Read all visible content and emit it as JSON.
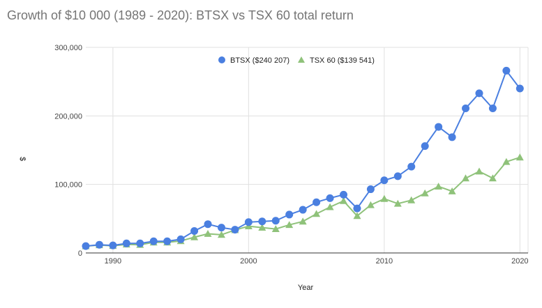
{
  "chart_data": {
    "type": "line",
    "title": "Growth of $10 000 (1989 - 2020): BTSX vs TSX 60 total return",
    "xlabel": "Year",
    "ylabel": "$",
    "xlim": [
      1988,
      2020.6
    ],
    "ylim": [
      0,
      300000
    ],
    "x_ticks": [
      1990,
      2000,
      2010,
      2020
    ],
    "x_tick_labels": [
      "1990",
      "2000",
      "2010",
      "2020"
    ],
    "y_ticks": [
      0,
      100000,
      200000,
      300000
    ],
    "y_tick_labels": [
      "0",
      "100,000",
      "200,000",
      "300,000"
    ],
    "grid": true,
    "legend_position": "top",
    "x": [
      1988,
      1989,
      1990,
      1991,
      1992,
      1993,
      1994,
      1995,
      1996,
      1997,
      1998,
      1999,
      2000,
      2001,
      2002,
      2003,
      2004,
      2005,
      2006,
      2007,
      2008,
      2009,
      2010,
      2011,
      2012,
      2013,
      2014,
      2015,
      2016,
      2017,
      2018,
      2019,
      2020
    ],
    "series": [
      {
        "name": "BTSX ($240 207)",
        "color": "#4a7fe0",
        "marker": "circle",
        "values": [
          10000,
          12000,
          11000,
          14000,
          14000,
          17000,
          17000,
          20000,
          32000,
          42000,
          37000,
          34000,
          45000,
          46000,
          47000,
          56000,
          63000,
          74000,
          80000,
          85000,
          65000,
          93000,
          106000,
          112000,
          126000,
          156000,
          184000,
          169000,
          211000,
          233000,
          211000,
          266000,
          240000
        ]
      },
      {
        "name": "TSX 60 ($139 541)",
        "color": "#8fc27a",
        "marker": "triangle",
        "values": [
          10000,
          11500,
          10500,
          12500,
          12000,
          15500,
          15500,
          17500,
          23000,
          28000,
          26500,
          33500,
          39000,
          37000,
          35000,
          41000,
          46000,
          57000,
          67000,
          76000,
          54000,
          70000,
          79000,
          72000,
          77000,
          87000,
          97000,
          90000,
          109000,
          119000,
          109000,
          133000,
          139500
        ]
      }
    ]
  }
}
